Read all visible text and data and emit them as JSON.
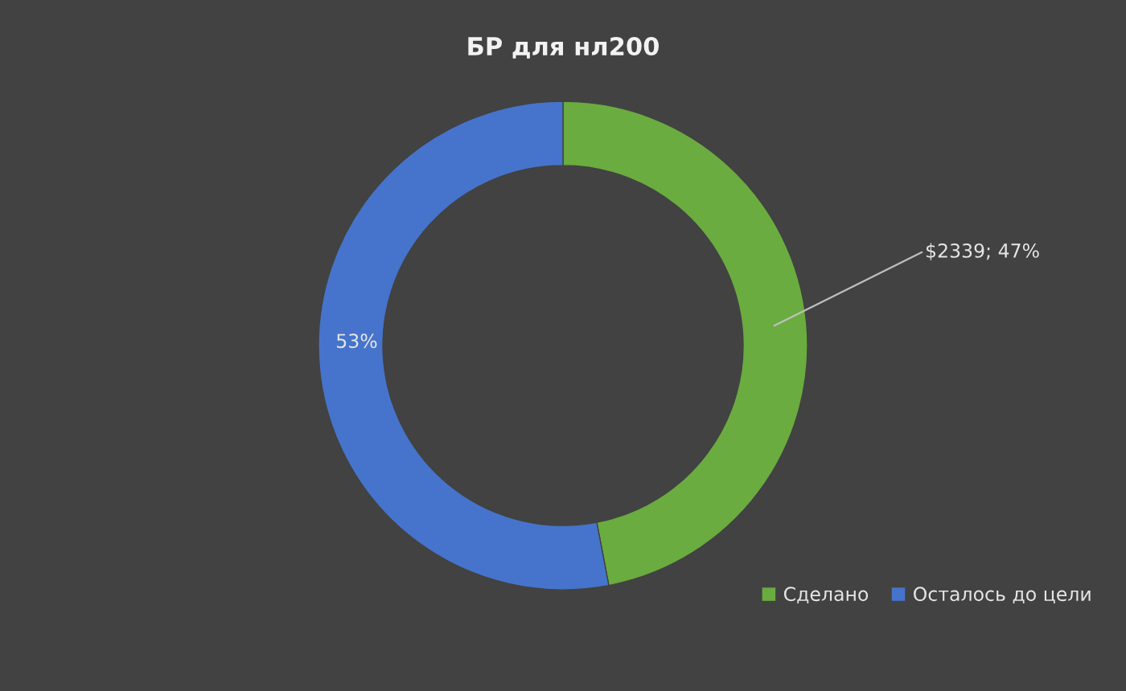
{
  "chart_data": {
    "type": "donut",
    "title": "БР для нл200",
    "categories": [
      "Сделано",
      "Осталось до цели"
    ],
    "values": [
      47,
      53
    ],
    "colors": [
      "#6aac3f",
      "#4674cc"
    ],
    "value_labels": [
      "$2339; 47%",
      "53%"
    ],
    "legend": "bottom right"
  }
}
